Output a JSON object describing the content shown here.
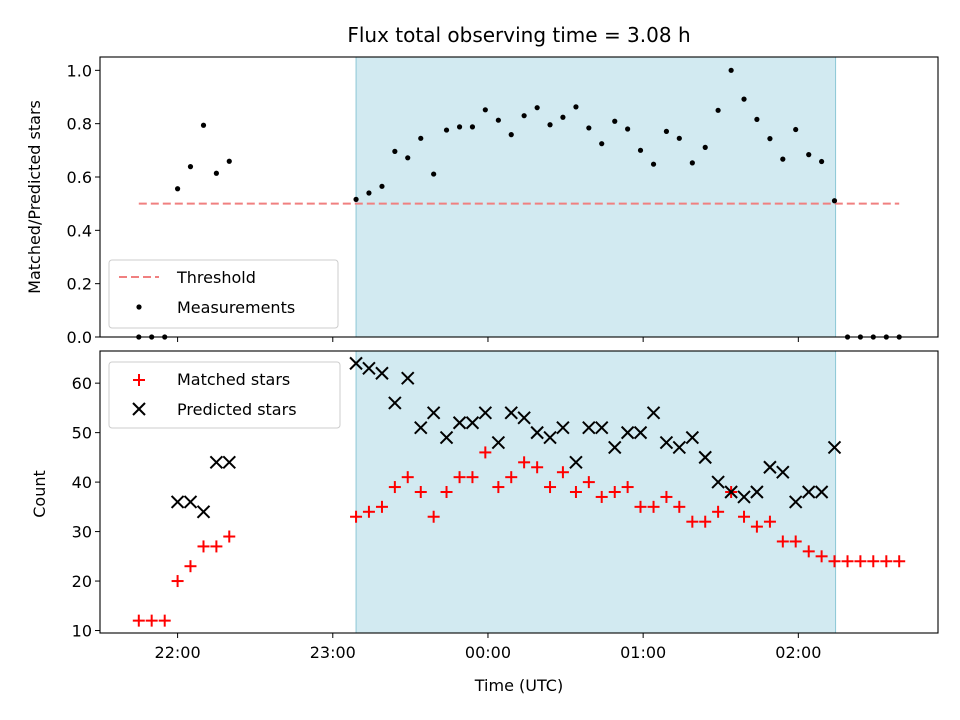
{
  "chart_data": [
    {
      "type": "scatter",
      "title": "Flux total observing time = 3.08 h",
      "xlabel": "",
      "ylabel": "Matched/Predicted stars",
      "ylim": [
        0,
        1.05
      ],
      "yticks": [
        0.0,
        0.2,
        0.4,
        0.6,
        0.8,
        1.0
      ],
      "ytick_labels": [
        "0.0",
        "0.2",
        "0.4",
        "0.6",
        "0.8",
        "1.0"
      ],
      "xlim_hours": [
        21.5,
        26.9
      ],
      "xticks_hours": [
        22,
        23,
        24,
        25,
        26
      ],
      "xtick_labels": [
        "22:00",
        "23:00",
        "00:00",
        "01:00",
        "02:00"
      ],
      "shaded_span_hours": [
        23.15,
        26.24
      ],
      "threshold": {
        "name": "Threshold",
        "y": 0.5,
        "x_range_hours": [
          21.75,
          26.65
        ],
        "color": "#f08080"
      },
      "legend_location": "lower left",
      "series": [
        {
          "name": "Measurements",
          "color": "#000000",
          "marker": "dot",
          "points": [
            [
              21.75,
              0.0
            ],
            [
              21.833,
              0.0
            ],
            [
              21.917,
              0.0
            ],
            [
              22.0,
              0.556
            ],
            [
              22.083,
              0.639
            ],
            [
              22.167,
              0.794
            ],
            [
              22.25,
              0.614
            ],
            [
              22.333,
              0.659
            ],
            [
              23.15,
              0.516
            ],
            [
              23.233,
              0.54
            ],
            [
              23.317,
              0.565
            ],
            [
              23.4,
              0.696
            ],
            [
              23.483,
              0.672
            ],
            [
              23.567,
              0.745
            ],
            [
              23.65,
              0.611
            ],
            [
              23.733,
              0.776
            ],
            [
              23.817,
              0.788
            ],
            [
              23.9,
              0.788
            ],
            [
              23.983,
              0.852
            ],
            [
              24.067,
              0.813
            ],
            [
              24.15,
              0.759
            ],
            [
              24.233,
              0.83
            ],
            [
              24.317,
              0.86
            ],
            [
              24.4,
              0.796
            ],
            [
              24.483,
              0.824
            ],
            [
              24.567,
              0.863
            ],
            [
              24.65,
              0.784
            ],
            [
              24.733,
              0.725
            ],
            [
              24.817,
              0.809
            ],
            [
              24.9,
              0.78
            ],
            [
              24.983,
              0.7
            ],
            [
              25.067,
              0.648
            ],
            [
              25.15,
              0.771
            ],
            [
              25.233,
              0.745
            ],
            [
              25.317,
              0.653
            ],
            [
              25.4,
              0.711
            ],
            [
              25.483,
              0.85
            ],
            [
              25.567,
              1.0
            ],
            [
              25.65,
              0.892
            ],
            [
              25.733,
              0.816
            ],
            [
              25.817,
              0.744
            ],
            [
              25.9,
              0.667
            ],
            [
              25.983,
              0.778
            ],
            [
              26.067,
              0.684
            ],
            [
              26.15,
              0.658
            ],
            [
              26.233,
              0.511
            ],
            [
              26.317,
              0.0
            ],
            [
              26.4,
              0.0
            ],
            [
              26.483,
              0.0
            ],
            [
              26.567,
              0.0
            ],
            [
              26.65,
              0.0
            ]
          ]
        }
      ]
    },
    {
      "type": "scatter",
      "title": "",
      "xlabel": "Time (UTC)",
      "ylabel": "Count",
      "ylim": [
        9.5,
        66.5
      ],
      "yticks": [
        10,
        20,
        30,
        40,
        50,
        60
      ],
      "ytick_labels": [
        "10",
        "20",
        "30",
        "40",
        "50",
        "60"
      ],
      "xlim_hours": [
        21.5,
        26.9
      ],
      "xticks_hours": [
        22,
        23,
        24,
        25,
        26
      ],
      "xtick_labels": [
        "22:00",
        "23:00",
        "00:00",
        "01:00",
        "02:00"
      ],
      "shaded_span_hours": [
        23.15,
        26.24
      ],
      "legend_location": "upper left",
      "series": [
        {
          "name": "Matched stars",
          "color": "#ff0000",
          "marker": "plus",
          "points": [
            [
              21.75,
              12
            ],
            [
              21.833,
              12
            ],
            [
              21.917,
              12
            ],
            [
              22.0,
              20
            ],
            [
              22.083,
              23
            ],
            [
              22.167,
              27
            ],
            [
              22.25,
              27
            ],
            [
              22.333,
              29
            ],
            [
              23.15,
              33
            ],
            [
              23.233,
              34
            ],
            [
              23.317,
              35
            ],
            [
              23.4,
              39
            ],
            [
              23.483,
              41
            ],
            [
              23.567,
              38
            ],
            [
              23.65,
              33
            ],
            [
              23.733,
              38
            ],
            [
              23.817,
              41
            ],
            [
              23.9,
              41
            ],
            [
              23.983,
              46
            ],
            [
              24.067,
              39
            ],
            [
              24.15,
              41
            ],
            [
              24.233,
              44
            ],
            [
              24.317,
              43
            ],
            [
              24.4,
              39
            ],
            [
              24.483,
              42
            ],
            [
              24.567,
              38
            ],
            [
              24.65,
              40
            ],
            [
              24.733,
              37
            ],
            [
              24.817,
              38
            ],
            [
              24.9,
              39
            ],
            [
              24.983,
              35
            ],
            [
              25.067,
              35
            ],
            [
              25.15,
              37
            ],
            [
              25.233,
              35
            ],
            [
              25.317,
              32
            ],
            [
              25.4,
              32
            ],
            [
              25.483,
              34
            ],
            [
              25.567,
              38
            ],
            [
              25.65,
              33
            ],
            [
              25.733,
              31
            ],
            [
              25.817,
              32
            ],
            [
              25.9,
              28
            ],
            [
              25.983,
              28
            ],
            [
              26.067,
              26
            ],
            [
              26.15,
              25
            ],
            [
              26.233,
              24
            ],
            [
              26.317,
              24
            ],
            [
              26.4,
              24
            ],
            [
              26.483,
              24
            ],
            [
              26.567,
              24
            ],
            [
              26.65,
              24
            ]
          ]
        },
        {
          "name": "Predicted stars",
          "color": "#000000",
          "marker": "x",
          "points": [
            [
              22.0,
              36
            ],
            [
              22.083,
              36
            ],
            [
              22.167,
              34
            ],
            [
              22.25,
              44
            ],
            [
              22.333,
              44
            ],
            [
              23.15,
              64
            ],
            [
              23.233,
              63
            ],
            [
              23.317,
              62
            ],
            [
              23.4,
              56
            ],
            [
              23.483,
              61
            ],
            [
              23.567,
              51
            ],
            [
              23.65,
              54
            ],
            [
              23.733,
              49
            ],
            [
              23.817,
              52
            ],
            [
              23.9,
              52
            ],
            [
              23.983,
              54
            ],
            [
              24.067,
              48
            ],
            [
              24.15,
              54
            ],
            [
              24.233,
              53
            ],
            [
              24.317,
              50
            ],
            [
              24.4,
              49
            ],
            [
              24.483,
              51
            ],
            [
              24.567,
              44
            ],
            [
              24.65,
              51
            ],
            [
              24.733,
              51
            ],
            [
              24.817,
              47
            ],
            [
              24.9,
              50
            ],
            [
              24.983,
              50
            ],
            [
              25.067,
              54
            ],
            [
              25.15,
              48
            ],
            [
              25.233,
              47
            ],
            [
              25.317,
              49
            ],
            [
              25.4,
              45
            ],
            [
              25.483,
              40
            ],
            [
              25.567,
              38
            ],
            [
              25.65,
              37
            ],
            [
              25.733,
              38
            ],
            [
              25.817,
              43
            ],
            [
              25.9,
              42
            ],
            [
              25.983,
              36
            ],
            [
              26.067,
              38
            ],
            [
              26.15,
              38
            ],
            [
              26.233,
              47
            ]
          ]
        }
      ]
    }
  ],
  "colors": {
    "shade": "#add8e6",
    "shade_edge": "#8cc7d6",
    "threshold": "#f08080",
    "matched": "#ff0000",
    "predicted": "#000000",
    "measurements": "#000000"
  }
}
